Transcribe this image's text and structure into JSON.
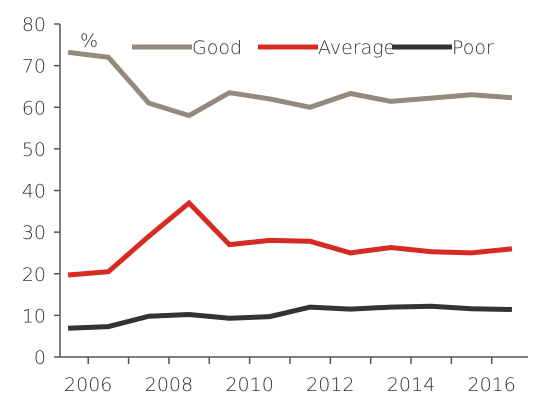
{
  "chart_data": {
    "type": "line",
    "unit_label": "%",
    "x": [
      2005.5,
      2006.5,
      2007.5,
      2008.5,
      2009.5,
      2010.5,
      2011.5,
      2012.5,
      2013.5,
      2014.5,
      2015.5,
      2016.5
    ],
    "xlim": [
      2005.3,
      2016.9
    ],
    "ylim": [
      0,
      80
    ],
    "y_ticks": [
      0,
      10,
      20,
      30,
      40,
      50,
      60,
      70,
      80
    ],
    "x_ticks": [
      2006,
      2008,
      2010,
      2012,
      2014,
      2016
    ],
    "series": [
      {
        "name": "Good",
        "color": "#938a7b",
        "values": [
          73.2,
          72.0,
          61.0,
          58.0,
          63.5,
          62.0,
          60.0,
          63.3,
          61.4,
          62.2,
          63.0,
          62.3
        ]
      },
      {
        "name": "Average",
        "color": "#d62b22",
        "values": [
          19.7,
          20.5,
          29.0,
          37.0,
          27.0,
          28.0,
          27.8,
          25.0,
          26.3,
          25.3,
          25.0,
          26.0
        ]
      },
      {
        "name": "Poor",
        "color": "#333333",
        "values": [
          6.9,
          7.3,
          9.8,
          10.2,
          9.3,
          9.7,
          12.0,
          11.5,
          12.0,
          12.2,
          11.6,
          11.4
        ]
      }
    ],
    "legend_position": "top",
    "grid": false
  }
}
